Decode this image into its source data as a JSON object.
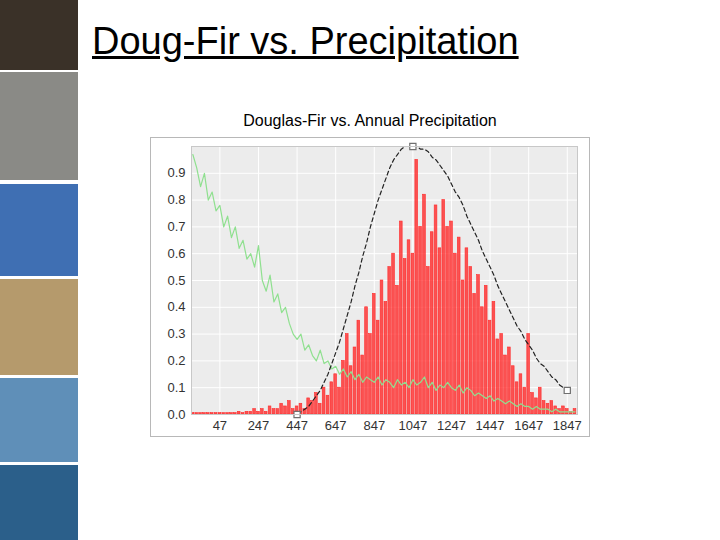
{
  "title": "Doug-Fir vs. Precipitation",
  "chart_data": {
    "type": "bar",
    "title": "Douglas-Fir vs. Annual Precipitation",
    "x": [
      -93,
      -73,
      -53,
      -33,
      -13,
      7,
      27,
      47,
      67,
      87,
      107,
      127,
      147,
      167,
      187,
      207,
      227,
      247,
      267,
      287,
      307,
      327,
      347,
      367,
      387,
      407,
      427,
      447,
      467,
      487,
      507,
      527,
      547,
      567,
      587,
      607,
      627,
      647,
      667,
      687,
      707,
      727,
      747,
      767,
      787,
      807,
      827,
      847,
      867,
      887,
      907,
      927,
      947,
      967,
      987,
      1007,
      1027,
      1047,
      1067,
      1087,
      1107,
      1127,
      1147,
      1167,
      1187,
      1207,
      1227,
      1247,
      1267,
      1287,
      1307,
      1327,
      1347,
      1367,
      1387,
      1407,
      1427,
      1447,
      1467,
      1487,
      1507,
      1527,
      1547,
      1567,
      1587,
      1607,
      1627,
      1647,
      1667,
      1687,
      1707,
      1727,
      1747,
      1767,
      1787,
      1807,
      1827,
      1847,
      1867,
      1887
    ],
    "xlim": [
      -100,
      1900
    ],
    "xticks": [
      47,
      247,
      447,
      647,
      847,
      1047,
      1247,
      1447,
      1647,
      1847
    ],
    "ylim": [
      0,
      1.0
    ],
    "yticks": [
      {
        "value": 0,
        "label": "0.0"
      },
      0.1,
      0.2,
      0.3,
      0.4,
      0.5,
      0.6,
      0.7,
      0.8,
      0.9
    ],
    "grid": true,
    "series": [
      {
        "type": "bar",
        "color": "#ff2a2a",
        "values": [
          0.005,
          0.005,
          0.005,
          0.005,
          0.005,
          0.005,
          0.005,
          0.005,
          0.005,
          0.005,
          0.005,
          0.005,
          0.01,
          0.005,
          0.01,
          0.01,
          0.02,
          0.01,
          0.02,
          0.01,
          0.03,
          0.02,
          0.02,
          0.04,
          0.03,
          0.05,
          0.02,
          0.03,
          0.04,
          0.02,
          0.06,
          0.05,
          0.08,
          0.04,
          0.1,
          0.07,
          0.12,
          0.15,
          0.1,
          0.2,
          0.3,
          0.18,
          0.25,
          0.35,
          0.22,
          0.4,
          0.3,
          0.45,
          0.35,
          0.5,
          0.42,
          0.55,
          0.6,
          0.48,
          0.72,
          0.58,
          0.65,
          0.6,
          0.95,
          0.7,
          0.82,
          0.55,
          0.68,
          0.78,
          0.62,
          0.8,
          0.7,
          0.72,
          0.6,
          0.66,
          0.5,
          0.62,
          0.55,
          0.45,
          0.52,
          0.4,
          0.48,
          0.35,
          0.42,
          0.28,
          0.3,
          0.22,
          0.25,
          0.18,
          0.12,
          0.15,
          0.1,
          0.3,
          0.08,
          0.06,
          0.1,
          0.05,
          0.04,
          0.05,
          0.03,
          0.02,
          0.03,
          0.02,
          0.01,
          0.02
        ]
      },
      {
        "type": "line",
        "color": "#8fe08f",
        "values": [
          0.97,
          0.92,
          0.85,
          0.9,
          0.8,
          0.83,
          0.76,
          0.78,
          0.7,
          0.74,
          0.66,
          0.7,
          0.62,
          0.65,
          0.58,
          0.6,
          0.55,
          0.63,
          0.5,
          0.46,
          0.52,
          0.42,
          0.45,
          0.38,
          0.4,
          0.34,
          0.3,
          0.28,
          0.3,
          0.24,
          0.26,
          0.22,
          0.2,
          0.24,
          0.19,
          0.2,
          0.17,
          0.18,
          0.15,
          0.17,
          0.14,
          0.16,
          0.13,
          0.15,
          0.12,
          0.14,
          0.13,
          0.12,
          0.14,
          0.11,
          0.13,
          0.12,
          0.1,
          0.13,
          0.11,
          0.12,
          0.1,
          0.13,
          0.11,
          0.12,
          0.14,
          0.1,
          0.12,
          0.09,
          0.11,
          0.1,
          0.12,
          0.1,
          0.09,
          0.11,
          0.08,
          0.1,
          0.09,
          0.07,
          0.08,
          0.07,
          0.06,
          0.07,
          0.05,
          0.06,
          0.05,
          0.04,
          0.05,
          0.04,
          0.03,
          0.04,
          0.03,
          0.03,
          0.02,
          0.03,
          0.02,
          0.02,
          0.02,
          0.01,
          0.02,
          0.01,
          0.01,
          0.01,
          0.01,
          0.01
        ]
      },
      {
        "type": "line",
        "line_style": "dashed",
        "color": "#222222",
        "values": [
          0,
          0,
          0,
          0,
          0,
          0,
          0,
          0,
          0,
          0,
          0,
          0,
          0,
          0,
          0,
          0,
          0,
          0,
          0,
          0,
          0,
          0,
          0,
          0,
          0,
          0,
          0,
          0,
          0.01,
          0.02,
          0.03,
          0.05,
          0.07,
          0.09,
          0.12,
          0.15,
          0.19,
          0.23,
          0.27,
          0.32,
          0.37,
          0.42,
          0.48,
          0.53,
          0.59,
          0.64,
          0.7,
          0.75,
          0.8,
          0.84,
          0.88,
          0.92,
          0.95,
          0.97,
          0.99,
          1.0,
          1.0,
          1.0,
          1.0,
          0.99,
          0.99,
          0.98,
          0.96,
          0.95,
          0.93,
          0.91,
          0.89,
          0.86,
          0.83,
          0.81,
          0.78,
          0.74,
          0.71,
          0.68,
          0.65,
          0.61,
          0.58,
          0.55,
          0.52,
          0.48,
          0.45,
          0.42,
          0.39,
          0.36,
          0.33,
          0.31,
          0.28,
          0.26,
          0.24,
          0.21,
          0.19,
          0.18,
          0.16,
          0.14,
          0.13,
          0.11,
          0.1,
          0.09,
          null,
          null
        ]
      },
      {
        "type": "scatter",
        "marker": "square",
        "color": "#707070",
        "x": [
          447,
          1047,
          1847
        ],
        "values": [
          0,
          1.0,
          0.09
        ]
      }
    ]
  }
}
